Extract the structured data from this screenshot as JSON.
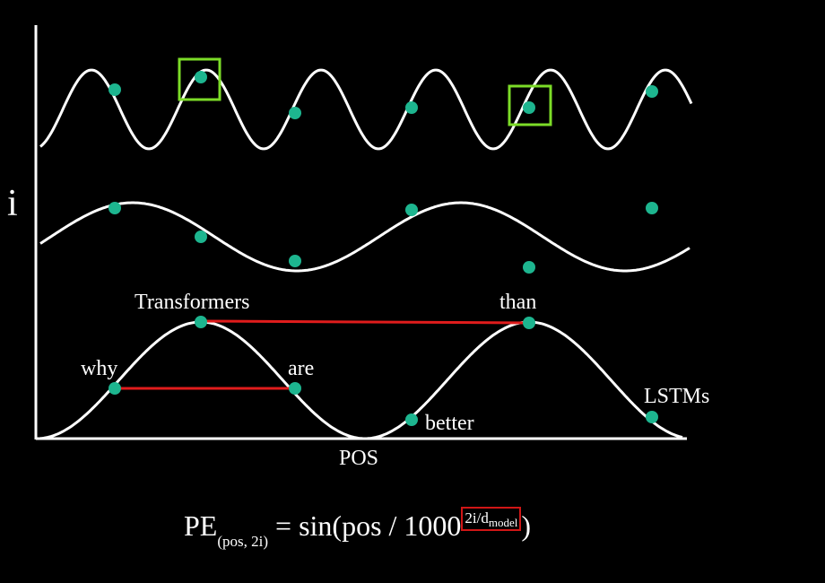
{
  "diagram": {
    "y_axis_label": "i",
    "x_axis_label": "POS",
    "words": [
      {
        "id": "why",
        "label": "why"
      },
      {
        "id": "transformers",
        "label": "Transformers"
      },
      {
        "id": "are",
        "label": "are"
      },
      {
        "id": "better",
        "label": "better"
      },
      {
        "id": "than",
        "label": "than"
      },
      {
        "id": "lstms",
        "label": "LSTMs"
      }
    ],
    "colors": {
      "background": "#000000",
      "wave": "#ffffff",
      "point": "#1db58f",
      "connector": "#e01c1c",
      "highlight_box": "#7cdc28",
      "formula_box": "#d01616"
    }
  },
  "formula": {
    "lhs": "PE",
    "lhs_sub": "(pos, 2i)",
    "eq": " = sin(pos / 1000",
    "exp_main": "2i/d",
    "exp_sub": "model",
    "close": ")"
  }
}
